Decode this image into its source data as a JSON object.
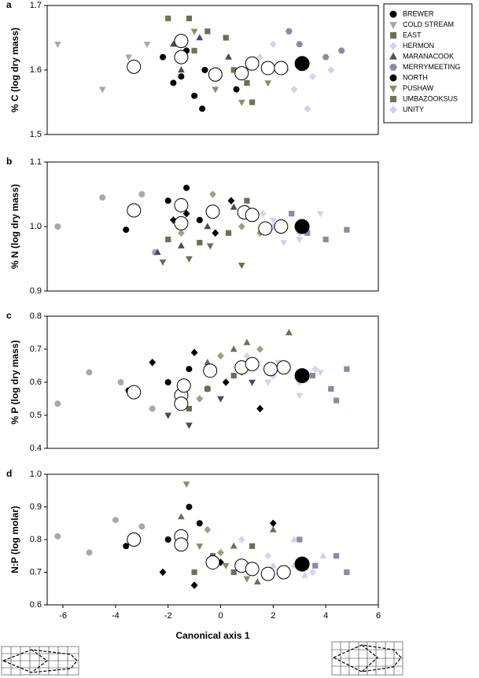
{
  "chart_data": [
    {
      "type": "scatter",
      "label": "a",
      "ylabel": "% C (log dry mass)",
      "xlim": [
        -6.6,
        6
      ],
      "ylim": [
        1.5,
        1.7
      ],
      "yticks": [
        1.5,
        1.6,
        1.7
      ],
      "series": [
        {
          "name": "BREWER",
          "color": "#000000",
          "marker": "circle",
          "x": [
            -1.8,
            -1.0,
            -0.6,
            -1.3
          ],
          "values": [
            1.58,
            1.56,
            1.6,
            1.63
          ]
        },
        {
          "name": "COLD STREAM",
          "color": "#a8a8a8",
          "marker": "triangle-down",
          "x": [
            -3.5,
            -6.2,
            -4.5,
            -2.8
          ],
          "values": [
            1.62,
            1.64,
            1.57,
            1.64
          ]
        },
        {
          "name": "EAST",
          "color": "#6e6e58",
          "marker": "square",
          "x": [
            -1.2,
            0.2,
            -0.5,
            1.0
          ],
          "values": [
            1.68,
            1.65,
            1.66,
            1.58
          ]
        },
        {
          "name": "HERMON",
          "color": "#d4d4f0",
          "marker": "diamond",
          "x": [
            1.5,
            2.5,
            3.5,
            2.0
          ],
          "values": [
            1.62,
            1.6,
            1.59,
            1.64
          ]
        },
        {
          "name": "MARANACOOK",
          "color": "#4a4a5a",
          "marker": "triangle-up",
          "x": [
            -1.8,
            -0.8,
            0.3,
            -1.5
          ],
          "values": [
            1.64,
            1.65,
            1.62,
            1.6
          ]
        },
        {
          "name": "MERRYMEETING",
          "color": "#8a8aa4",
          "marker": "hexagon",
          "x": [
            3.0,
            4.0,
            4.6,
            2.6
          ],
          "values": [
            1.64,
            1.62,
            1.63,
            1.66
          ]
        },
        {
          "name": "NORTH",
          "color": "#000000",
          "marker": "circle",
          "x": [
            -2.2,
            -0.7,
            0.6,
            -1.5
          ],
          "values": [
            1.62,
            1.54,
            1.57,
            1.59
          ]
        },
        {
          "name": "PUSHAW",
          "color": "#8c8c66",
          "marker": "triangle-down",
          "x": [
            -0.2,
            0.8,
            1.8,
            -1.0
          ],
          "values": [
            1.57,
            1.55,
            1.58,
            1.66
          ]
        },
        {
          "name": "UMBAZOOKSUS",
          "color": "#737358",
          "marker": "square",
          "x": [
            -1.0,
            0.5,
            1.2,
            -2.0
          ],
          "values": [
            1.63,
            1.6,
            1.55,
            1.68
          ]
        },
        {
          "name": "UNITY",
          "color": "#d0d0ee",
          "marker": "diamond",
          "x": [
            1.0,
            2.8,
            3.3,
            4.2
          ],
          "values": [
            1.6,
            1.57,
            1.54,
            1.6
          ]
        }
      ],
      "centroids": {
        "x": [
          -3.3,
          -1.5,
          -1.5,
          -0.2,
          0.8,
          1.2,
          1.8,
          2.3,
          3.1
        ],
        "values": [
          1.605,
          1.645,
          1.62,
          1.593,
          1.595,
          1.61,
          1.603,
          1.603,
          1.61
        ],
        "colors": [
          "#fff",
          "#fff",
          "#fff",
          "#fff",
          "#fff",
          "#fff",
          "#fff",
          "#fff",
          "#000"
        ]
      }
    },
    {
      "type": "scatter",
      "label": "b",
      "ylabel": "% N (log dry mass)",
      "xlim": [
        -6.6,
        6
      ],
      "ylim": [
        0.9,
        1.1
      ],
      "yticks": [
        0.9,
        {
          "value": 1,
          "label": "1.0"
        },
        1.1
      ],
      "series": [
        {
          "color": "#000000",
          "marker": "circle",
          "x": [
            -2.0,
            -1.3,
            -3.6,
            -0.8
          ],
          "values": [
            1.04,
            1.06,
            0.995,
            1.01
          ]
        },
        {
          "color": "#a8a8a8",
          "marker": "circle",
          "x": [
            -4.5,
            -3.0,
            -2.5,
            -6.2
          ],
          "values": [
            1.045,
            1.05,
            0.96,
            1.0
          ]
        },
        {
          "color": "#6e6e58",
          "marker": "square",
          "x": [
            -2.0,
            -0.8,
            0.3,
            1.0
          ],
          "values": [
            0.98,
            0.975,
            0.99,
            1.04
          ]
        },
        {
          "color": "#d4d4f0",
          "marker": "diamond",
          "x": [
            1.0,
            2.0,
            3.0,
            1.6
          ],
          "values": [
            1.03,
            1.0,
            0.99,
            1.02
          ]
        },
        {
          "color": "#4a4a5a",
          "marker": "triangle-up",
          "x": [
            -1.5,
            -0.5,
            0.5,
            -2.4
          ],
          "values": [
            0.97,
            1.0,
            1.03,
            0.96
          ]
        },
        {
          "color": "#8a8aa4",
          "marker": "square",
          "x": [
            3.3,
            4.0,
            4.8,
            2.7
          ],
          "values": [
            0.99,
            0.98,
            0.995,
            1.02
          ]
        },
        {
          "color": "#000000",
          "marker": "diamond",
          "x": [
            -1.3,
            -0.2,
            -1.8,
            0.4
          ],
          "values": [
            1.02,
            0.99,
            1.01,
            1.04
          ]
        },
        {
          "color": "#6e6e58",
          "marker": "triangle-down",
          "x": [
            -2.2,
            -1.2,
            0.8,
            -0.4
          ],
          "values": [
            0.945,
            0.95,
            0.94,
            0.97
          ]
        },
        {
          "color": "#a0a080",
          "marker": "diamond",
          "x": [
            -0.3,
            0.8,
            1.5,
            -1.5
          ],
          "values": [
            1.05,
            1.0,
            0.99,
            0.99
          ]
        },
        {
          "color": "#d0d0ee",
          "marker": "triangle-down",
          "x": [
            2.0,
            3.0,
            3.8,
            2.4
          ],
          "values": [
            1.01,
            0.98,
            1.02,
            0.975
          ]
        }
      ],
      "centroids": {
        "x": [
          -3.3,
          -1.5,
          -1.5,
          -0.3,
          0.9,
          1.2,
          1.7,
          2.3,
          3.1
        ],
        "values": [
          1.025,
          1.033,
          1.005,
          1.023,
          1.022,
          1.018,
          0.997,
          1.0,
          1.0
        ],
        "colors": [
          "#fff",
          "#fff",
          "#fff",
          "#fff",
          "#fff",
          "#fff",
          "#fff",
          "#fff",
          "#000"
        ]
      }
    },
    {
      "type": "scatter",
      "label": "c",
      "ylabel": "% P (log dry mass)",
      "xlim": [
        -6.6,
        6
      ],
      "ylim": [
        0.4,
        0.8
      ],
      "yticks": [
        0.4,
        0.5,
        0.6,
        0.7,
        0.8
      ],
      "series": [
        {
          "color": "#000000",
          "marker": "circle",
          "x": [
            -2.0,
            -1.2,
            -0.5,
            -3.5
          ],
          "values": [
            0.6,
            0.64,
            0.58,
            0.575
          ]
        },
        {
          "color": "#a8a8a8",
          "marker": "circle",
          "x": [
            -6.2,
            -5.0,
            -3.8,
            -2.6
          ],
          "values": [
            0.535,
            0.63,
            0.6,
            0.52
          ]
        },
        {
          "color": "#6e6e58",
          "marker": "square",
          "x": [
            -0.5,
            0.5,
            1.2,
            -1.2
          ],
          "values": [
            0.58,
            0.62,
            0.66,
            0.52
          ]
        },
        {
          "color": "#d4d4f0",
          "marker": "diamond",
          "x": [
            1.0,
            2.0,
            3.0,
            3.6
          ],
          "values": [
            0.68,
            0.62,
            0.6,
            0.64
          ]
        },
        {
          "color": "#6e6e58",
          "marker": "triangle-up",
          "x": [
            0.5,
            1.0,
            2.6,
            -0.5
          ],
          "values": [
            0.7,
            0.72,
            0.75,
            0.66
          ]
        },
        {
          "color": "#8a8aa4",
          "marker": "square",
          "x": [
            3.5,
            4.2,
            4.8,
            4.4
          ],
          "values": [
            0.62,
            0.58,
            0.64,
            0.545
          ]
        },
        {
          "color": "#000000",
          "marker": "diamond",
          "x": [
            -2.6,
            -1.0,
            0.2,
            1.5
          ],
          "values": [
            0.66,
            0.69,
            0.6,
            0.52
          ]
        },
        {
          "color": "#4a4a5a",
          "marker": "triangle-down",
          "x": [
            -2.0,
            -1.2,
            0.0,
            1.2
          ],
          "values": [
            0.5,
            0.47,
            0.55,
            0.6
          ]
        },
        {
          "color": "#a0a080",
          "marker": "diamond",
          "x": [
            0.0,
            1.5,
            0.8,
            -0.8
          ],
          "values": [
            0.68,
            0.7,
            0.63,
            0.55
          ]
        },
        {
          "color": "#d0d0ee",
          "marker": "triangle-down",
          "x": [
            2.2,
            3.0,
            1.8,
            3.8
          ],
          "values": [
            0.66,
            0.56,
            0.6,
            0.63
          ]
        }
      ],
      "centroids": {
        "x": [
          -3.3,
          -1.5,
          -1.5,
          -1.4,
          -0.4,
          0.8,
          1.2,
          1.9,
          2.4,
          3.1
        ],
        "values": [
          0.57,
          0.56,
          0.535,
          0.59,
          0.635,
          0.645,
          0.655,
          0.64,
          0.645,
          0.62
        ],
        "colors": [
          "#fff",
          "#fff",
          "#fff",
          "#fff",
          "#fff",
          "#fff",
          "#fff",
          "#fff",
          "#fff",
          "#000"
        ]
      }
    },
    {
      "type": "scatter",
      "label": "d",
      "ylabel": "N:P (log molar)",
      "xlabel": "Canonical axis 1",
      "xlim": [
        -6.6,
        6
      ],
      "xticks": [
        -6,
        -4,
        -2,
        0,
        2,
        4,
        6
      ],
      "ylim": [
        0.6,
        1.0
      ],
      "yticks": [
        0.6,
        0.7,
        0.8,
        0.9,
        {
          "value": 1,
          "label": "1.0"
        }
      ],
      "series": [
        {
          "color": "#000000",
          "marker": "circle",
          "x": [
            -2.0,
            -1.2,
            -0.8,
            -3.6
          ],
          "values": [
            0.8,
            0.9,
            0.85,
            0.78
          ]
        },
        {
          "color": "#a8a8a8",
          "marker": "circle",
          "x": [
            -6.2,
            -5.0,
            -4.0,
            -3.0
          ],
          "values": [
            0.81,
            0.76,
            0.86,
            0.84
          ]
        },
        {
          "color": "#6e6e58",
          "marker": "square",
          "x": [
            -0.3,
            0.5,
            1.2,
            -1.0
          ],
          "values": [
            0.75,
            0.7,
            0.78,
            0.7
          ]
        },
        {
          "color": "#d4d4f0",
          "marker": "diamond",
          "x": [
            0.8,
            1.8,
            2.8,
            3.5
          ],
          "values": [
            0.8,
            0.75,
            0.72,
            0.7
          ]
        },
        {
          "color": "#6e6e58",
          "marker": "triangle-up",
          "x": [
            -1.5,
            0.5,
            2.0,
            1.4
          ],
          "values": [
            0.87,
            0.78,
            0.83,
            0.67
          ]
        },
        {
          "color": "#8a8aa4",
          "marker": "square",
          "x": [
            3.0,
            3.6,
            4.4,
            4.8
          ],
          "values": [
            0.8,
            0.72,
            0.75,
            0.7
          ]
        },
        {
          "color": "#000000",
          "marker": "diamond",
          "x": [
            -2.2,
            -1.0,
            2.0,
            0.0
          ],
          "values": [
            0.7,
            0.66,
            0.85,
            0.73
          ]
        },
        {
          "color": "#8c8c66",
          "marker": "triangle-down",
          "x": [
            -1.3,
            -0.8,
            0.2,
            1.0
          ],
          "values": [
            0.97,
            0.78,
            0.72,
            0.68
          ]
        },
        {
          "color": "#a0a080",
          "marker": "diamond",
          "x": [
            -1.5,
            0.0,
            0.8,
            -0.5
          ],
          "values": [
            0.82,
            0.76,
            0.73,
            0.83
          ]
        },
        {
          "color": "#d0d0ee",
          "marker": "triangle-up",
          "x": [
            2.0,
            2.8,
            3.2,
            3.9
          ],
          "values": [
            0.72,
            0.8,
            0.69,
            0.75
          ]
        }
      ],
      "centroids": {
        "x": [
          -3.3,
          -1.5,
          -1.5,
          -0.3,
          0.8,
          1.2,
          1.8,
          2.4,
          3.1
        ],
        "values": [
          0.8,
          0.81,
          0.785,
          0.73,
          0.72,
          0.71,
          0.695,
          0.7,
          0.725
        ],
        "colors": [
          "#fff",
          "#fff",
          "#fff",
          "#fff",
          "#fff",
          "#fff",
          "#fff",
          "#fff",
          "#000"
        ]
      }
    }
  ]
}
